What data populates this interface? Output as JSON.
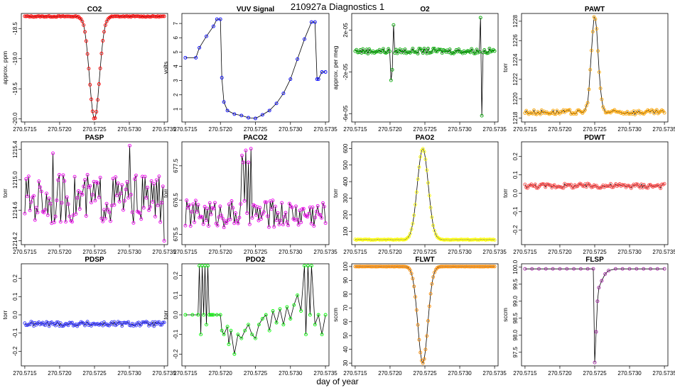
{
  "figure": {
    "title": "210927a   Diagnostics 1",
    "xlabel": "day of year"
  },
  "chart_data": [
    {
      "type": "line",
      "title": "CO2",
      "ylabel": "approx. ppm",
      "color": "#ff0000",
      "xlim": [
        270.57145,
        270.57355
      ],
      "ylim": [
        -20.05,
        -18.25
      ],
      "xticks": [
        270.5715,
        270.572,
        270.5725,
        270.573,
        270.5735
      ],
      "xtick_labels": [
        "270.5715",
        "270.5720",
        "270.5725",
        "270.5730",
        "270.5735"
      ],
      "yticks": [
        -18.5,
        -19.0,
        -19.5,
        -20.0
      ],
      "ytick_labels": [
        "-18.5",
        "-19.0",
        "-19.5",
        "-20.0"
      ],
      "profile": {
        "kind": "dip",
        "base": -18.3,
        "peak": -20.0,
        "center": 270.5725,
        "width": 0.0001,
        "noise": 0.008
      }
    },
    {
      "type": "line",
      "title": "VUV Signal",
      "ylabel": "volts",
      "color": "#0000ff",
      "xlim": [
        270.57145,
        270.57355
      ],
      "ylim": [
        0.1,
        7.7
      ],
      "xticks": [
        270.5715,
        270.572,
        270.5725,
        270.573,
        270.5735
      ],
      "xtick_labels": [
        "270.5715",
        "270.5720",
        "270.5725",
        "270.5730",
        "270.5735"
      ],
      "yticks": [
        1,
        2,
        3,
        4,
        5,
        6,
        7
      ],
      "ytick_labels": [
        "1",
        "2",
        "3",
        "4",
        "5",
        "6",
        "7"
      ],
      "points": [
        [
          270.5715,
          4.6
        ],
        [
          270.57165,
          4.6
        ],
        [
          270.5717,
          5.3
        ],
        [
          270.5718,
          6.1
        ],
        [
          270.5719,
          6.8
        ],
        [
          270.57195,
          7.3
        ],
        [
          270.572,
          7.3
        ],
        [
          270.57202,
          3.2
        ],
        [
          270.57205,
          1.5
        ],
        [
          270.5721,
          0.9
        ],
        [
          270.5722,
          0.65
        ],
        [
          270.5723,
          0.55
        ],
        [
          270.5724,
          0.4
        ],
        [
          270.5725,
          0.35
        ],
        [
          270.5726,
          0.6
        ],
        [
          270.5727,
          0.9
        ],
        [
          270.5728,
          1.4
        ],
        [
          270.5729,
          2.1
        ],
        [
          270.573,
          3.1
        ],
        [
          270.5731,
          4.5
        ],
        [
          270.5732,
          5.9
        ],
        [
          270.5733,
          7.1
        ],
        [
          270.57335,
          7.1
        ],
        [
          270.57338,
          3.1
        ],
        [
          270.5734,
          3.1
        ],
        [
          270.57345,
          3.6
        ],
        [
          270.5735,
          3.6
        ]
      ]
    },
    {
      "type": "line",
      "title": "O2",
      "ylabel": "approx. per meg",
      "color": "#00aa00",
      "xlim": [
        270.57145,
        270.57355
      ],
      "ylim": [
        -6.8e-05,
        3.6e-05
      ],
      "xticks": [
        270.5715,
        270.572,
        270.5725,
        270.573,
        270.5735
      ],
      "xtick_labels": [
        "270.5715",
        "270.5720",
        "270.5725",
        "270.5730",
        "270.5735"
      ],
      "yticks": [
        2e-05,
        -2e-05,
        -6e-05
      ],
      "ytick_labels": [
        "2e-05",
        "-2e-05",
        "-6e-05"
      ],
      "profile": {
        "kind": "noise",
        "base": 0.0,
        "noise": 2.5e-06
      },
      "spikes": [
        [
          270.57202,
          -2.8e-05
        ],
        [
          270.57203,
          -1.8e-05
        ],
        [
          270.57205,
          2.5e-05
        ],
        [
          270.5733,
          3.2e-05
        ],
        [
          270.57332,
          -6.2e-05
        ]
      ]
    },
    {
      "type": "line",
      "title": "PAWT",
      "ylabel": "torr",
      "color": "#ffa500",
      "xlim": [
        270.57145,
        270.57355
      ],
      "ylim": [
        1217.6,
        1228.8
      ],
      "xticks": [
        270.5715,
        270.572,
        270.5725,
        270.573,
        270.5735
      ],
      "xtick_labels": [
        "270.5715",
        "270.5720",
        "270.5725",
        "270.5730",
        "270.5735"
      ],
      "yticks": [
        1218,
        1220,
        1222,
        1224,
        1226,
        1228
      ],
      "ytick_labels": [
        "1218",
        "1220",
        "1222",
        "1224",
        "1226",
        "1228"
      ],
      "profile": {
        "kind": "peak",
        "base": 1218.6,
        "peak": 1228.4,
        "center": 270.5725,
        "width": 7e-05,
        "noise": 0.25
      }
    },
    {
      "type": "line",
      "title": "PASP",
      "ylabel": "torr",
      "color": "#ee00ee",
      "xlim": [
        270.57145,
        270.57355
      ],
      "ylim": [
        1214.15,
        1215.5
      ],
      "xticks": [
        270.5715,
        270.572,
        270.5725,
        270.573,
        270.5735
      ],
      "xtick_labels": [
        "270.5715",
        "270.5720",
        "270.5725",
        "270.5730",
        "270.5735"
      ],
      "yticks": [
        1214.2,
        1214.6,
        1215.0,
        1215.4
      ],
      "ytick_labels": [
        "1214.2",
        "1214.6",
        "1215.0",
        "1215.4"
      ],
      "profile": {
        "kind": "noise",
        "base": 1214.75,
        "noise": 0.32
      },
      "spikes": [
        [
          270.5719,
          1215.35
        ],
        [
          270.573,
          1215.45
        ],
        [
          270.5735,
          1214.2
        ]
      ]
    },
    {
      "type": "line",
      "title": "PACO2",
      "ylabel": "torr",
      "color": "#ee00ee",
      "xlim": [
        270.57145,
        270.57355
      ],
      "ylim": [
        675.2,
        678.2
      ],
      "xticks": [
        270.5715,
        270.572,
        270.5725,
        270.573,
        270.5735
      ],
      "xtick_labels": [
        "270.5715",
        "270.5720",
        "270.5725",
        "270.5730",
        "270.5735"
      ],
      "yticks": [
        675.5,
        676.5,
        677.5
      ],
      "ytick_labels": [
        "675.5",
        "676.5",
        "677.5"
      ],
      "profile": {
        "kind": "noise",
        "base": 676.1,
        "noise": 0.4
      },
      "spikes": [
        [
          270.5723,
          677.8
        ],
        [
          270.57232,
          677.6
        ],
        [
          270.57236,
          677.95
        ],
        [
          270.5724,
          677.6
        ],
        [
          270.57243,
          678.0
        ]
      ]
    },
    {
      "type": "line",
      "title": "PAO2",
      "ylabel": "torr",
      "color": "#ffff00",
      "xlim": [
        270.57145,
        270.57355
      ],
      "ylim": [
        20,
        640
      ],
      "xticks": [
        270.5715,
        270.572,
        270.5725,
        270.573,
        270.5735
      ],
      "xtick_labels": [
        "270.5715",
        "270.5720",
        "270.5725",
        "270.5730",
        "270.5735"
      ],
      "yticks": [
        100,
        200,
        300,
        400,
        500,
        600
      ],
      "ytick_labels": [
        "100",
        "200",
        "300",
        "400",
        "500",
        "600"
      ],
      "profile": {
        "kind": "peak",
        "base": 50,
        "peak": 600,
        "center": 270.57247,
        "width": 0.00011,
        "noise": 2
      }
    },
    {
      "type": "line",
      "title": "PDWT",
      "ylabel": "torr",
      "color": "#ff4444",
      "xlim": [
        270.57145,
        270.57355
      ],
      "ylim": [
        -0.28,
        0.28
      ],
      "xticks": [
        270.5715,
        270.572,
        270.5725,
        270.573,
        270.5735
      ],
      "xtick_labels": [
        "270.5715",
        "270.5720",
        "270.5725",
        "270.5730",
        "270.5735"
      ],
      "yticks": [
        0.2,
        0.1,
        0.0,
        -0.1,
        -0.2
      ],
      "ytick_labels": [
        "0.2",
        "0.1",
        "0.0",
        "-0.1",
        "-0.2"
      ],
      "profile": {
        "kind": "noise",
        "base": 0.04,
        "noise": 0.013
      }
    },
    {
      "type": "line",
      "title": "PDSP",
      "ylabel": "torr",
      "color": "#3333ff",
      "xlim": [
        270.57145,
        270.57355
      ],
      "ylim": [
        -0.28,
        0.28
      ],
      "xticks": [
        270.5715,
        270.572,
        270.5725,
        270.573,
        270.5735
      ],
      "xtick_labels": [
        "270.5715",
        "270.5720",
        "270.5725",
        "270.5730",
        "270.5735"
      ],
      "yticks": [
        0.2,
        0.1,
        0.0,
        -0.1,
        -0.2
      ],
      "ytick_labels": [
        "0.2",
        "0.1",
        "0.0",
        "-0.1",
        "-0.2"
      ],
      "profile": {
        "kind": "noise",
        "base": -0.05,
        "noise": 0.013
      }
    },
    {
      "type": "line",
      "title": "PDO2",
      "ylabel": "torr",
      "color": "#00ff00",
      "xlim": [
        270.57145,
        270.57355
      ],
      "ylim": [
        -0.26,
        0.26
      ],
      "xticks": [
        270.5715,
        270.572,
        270.5725,
        270.573,
        270.5735
      ],
      "xtick_labels": [
        "270.5715",
        "270.5720",
        "270.5725",
        "270.5730",
        "270.5735"
      ],
      "yticks": [
        0.2,
        0.1,
        0.0,
        -0.1,
        -0.2
      ],
      "ytick_labels": [
        "0.2",
        "0.1",
        "0.0",
        "-0.1",
        "-0.2"
      ],
      "points": [
        [
          270.5715,
          0.0
        ],
        [
          270.5716,
          0.0
        ],
        [
          270.57168,
          0.0
        ],
        [
          270.5717,
          0.25
        ],
        [
          270.57172,
          -0.1
        ],
        [
          270.57174,
          0.25
        ],
        [
          270.57176,
          0.0
        ],
        [
          270.57178,
          0.25
        ],
        [
          270.5718,
          -0.05
        ],
        [
          270.57182,
          0.25
        ],
        [
          270.57184,
          0.0
        ],
        [
          270.57186,
          0.0
        ],
        [
          270.57188,
          0.0
        ],
        [
          270.5719,
          0.0
        ],
        [
          270.57195,
          0.0
        ],
        [
          270.572,
          0.0
        ],
        [
          270.57202,
          -0.08
        ],
        [
          270.57205,
          -0.1
        ],
        [
          270.5721,
          -0.06
        ],
        [
          270.57212,
          -0.15
        ],
        [
          270.57215,
          -0.08
        ],
        [
          270.5722,
          -0.2
        ],
        [
          270.57225,
          -0.1
        ],
        [
          270.5723,
          -0.12
        ],
        [
          270.57235,
          -0.08
        ],
        [
          270.5724,
          -0.05
        ],
        [
          270.57245,
          -0.1
        ],
        [
          270.5725,
          -0.12
        ],
        [
          270.57255,
          -0.05
        ],
        [
          270.5726,
          -0.02
        ],
        [
          270.57265,
          0.0
        ],
        [
          270.5727,
          -0.08
        ],
        [
          270.57275,
          0.02
        ],
        [
          270.5728,
          -0.04
        ],
        [
          270.57285,
          0.03
        ],
        [
          270.5729,
          -0.05
        ],
        [
          270.57295,
          0.04
        ],
        [
          270.573,
          -0.02
        ],
        [
          270.57305,
          0.05
        ],
        [
          270.5731,
          0.1
        ],
        [
          270.57315,
          0.02
        ],
        [
          270.5732,
          0.25
        ],
        [
          270.57322,
          -0.1
        ],
        [
          270.57325,
          0.25
        ],
        [
          270.57328,
          0.0
        ],
        [
          270.5733,
          0.25
        ],
        [
          270.57335,
          -0.05
        ],
        [
          270.5734,
          0.0
        ],
        [
          270.57345,
          -0.1
        ],
        [
          270.5735,
          0.0
        ]
      ]
    },
    {
      "type": "line",
      "title": "FLWT",
      "ylabel": "sccm",
      "color": "#ff8c00",
      "xlim": [
        270.57145,
        270.57355
      ],
      "ylim": [
        28,
        102
      ],
      "xticks": [
        270.5715,
        270.572,
        270.5725,
        270.573,
        270.5735
      ],
      "xtick_labels": [
        "270.5715",
        "270.5720",
        "270.5725",
        "270.5730",
        "270.5735"
      ],
      "yticks": [
        30,
        40,
        50,
        60,
        70,
        80,
        90,
        100
      ],
      "ytick_labels": [
        "30",
        "40",
        "50",
        "60",
        "70",
        "80",
        "90",
        "100"
      ],
      "profile": {
        "kind": "dip",
        "base": 100,
        "peak": 30,
        "center": 270.57247,
        "width": 0.0001,
        "noise": 0.05
      }
    },
    {
      "type": "line",
      "title": "FLSP",
      "ylabel": "sccm",
      "color": "#a020a0",
      "xlim": [
        270.57145,
        270.57355
      ],
      "ylim": [
        97.1,
        100.1
      ],
      "xticks": [
        270.5715,
        270.572,
        270.5725,
        270.573,
        270.5735
      ],
      "xtick_labels": [
        "270.5715",
        "270.5720",
        "270.5725",
        "270.5730",
        "270.5735"
      ],
      "yticks": [
        100.0,
        99.5,
        99.0,
        98.5,
        98.0,
        97.5
      ],
      "ytick_labels": [
        "100.0",
        "99.5",
        "99.0",
        "98.5",
        "98.0",
        "97.5"
      ],
      "points": [
        [
          270.5715,
          99.95
        ],
        [
          270.5716,
          99.95
        ],
        [
          270.5717,
          99.95
        ],
        [
          270.5718,
          99.95
        ],
        [
          270.5719,
          99.95
        ],
        [
          270.572,
          99.95
        ],
        [
          270.5721,
          99.95
        ],
        [
          270.5722,
          99.95
        ],
        [
          270.5723,
          99.95
        ],
        [
          270.5724,
          99.95
        ],
        [
          270.57248,
          99.95
        ],
        [
          270.5725,
          97.2
        ],
        [
          270.57252,
          98.1
        ],
        [
          270.57254,
          99.0
        ],
        [
          270.57256,
          99.4
        ],
        [
          270.5726,
          99.6
        ],
        [
          270.57265,
          99.8
        ],
        [
          270.5727,
          99.9
        ],
        [
          270.5728,
          99.95
        ],
        [
          270.5729,
          99.95
        ],
        [
          270.573,
          99.95
        ],
        [
          270.5731,
          99.95
        ],
        [
          270.5732,
          99.95
        ],
        [
          270.5733,
          99.95
        ],
        [
          270.5734,
          99.95
        ],
        [
          270.5735,
          99.95
        ]
      ]
    }
  ]
}
